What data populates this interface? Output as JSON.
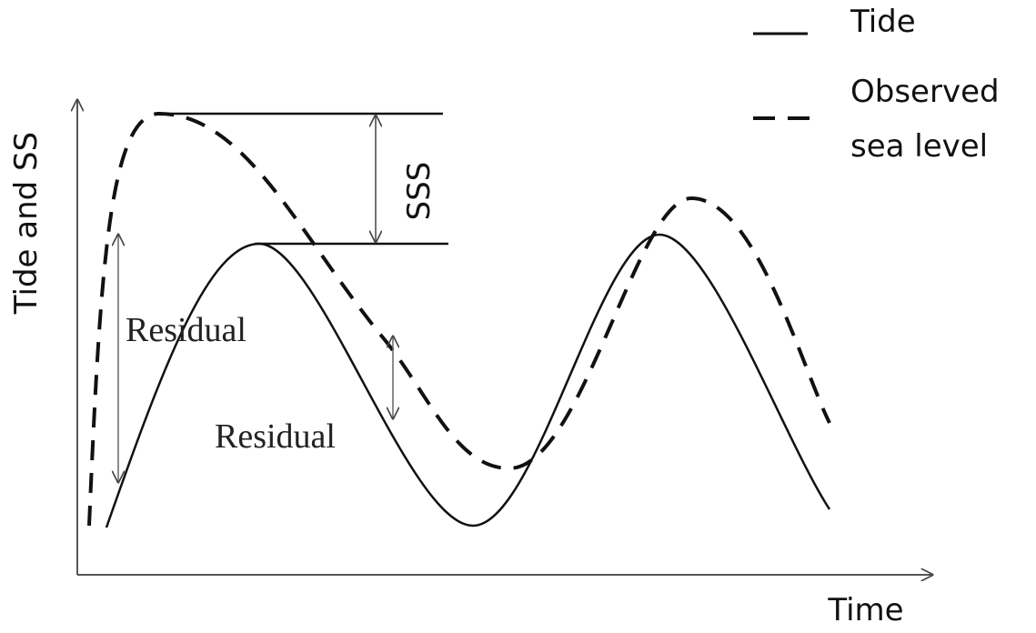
{
  "axes": {
    "y_label": "Tide and SS",
    "x_label": "Time"
  },
  "legend": [
    {
      "label": "Tide"
    },
    {
      "lines": [
        "Observed",
        "sea level"
      ]
    }
  ],
  "annotations": {
    "sss": "SSS",
    "residual_1": "Residual",
    "residual_2": "Residual"
  }
}
